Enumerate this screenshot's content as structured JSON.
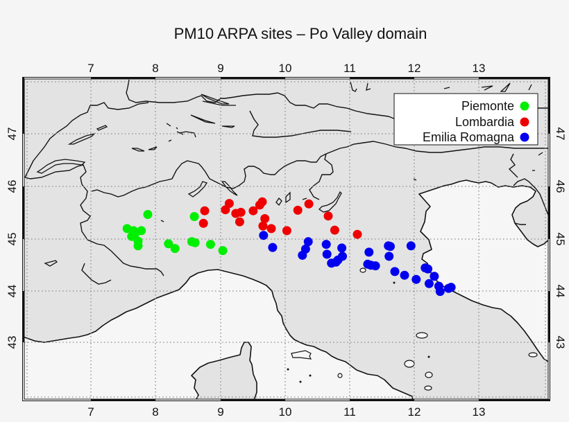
{
  "chart_data": {
    "type": "scatter",
    "title": "PM10 ARPA sites – Po Valley domain",
    "xlabel": "",
    "ylabel": "",
    "xlim": [
      5.95,
      14.1
    ],
    "ylim": [
      41.9,
      48.05
    ],
    "x_ticks": [
      "7",
      "8",
      "9",
      "10",
      "11",
      "12",
      "13"
    ],
    "y_ticks": [
      "43",
      "44",
      "45",
      "46",
      "47"
    ],
    "grid": true,
    "legend_position": "upper right",
    "colors": {
      "land": "#e3e3e3",
      "sea": "#f6f6f6",
      "coast": "#111111"
    },
    "series": [
      {
        "name": "Piemonte",
        "color": "#00ee00",
        "points": [
          [
            7.88,
            45.47
          ],
          [
            7.56,
            45.2
          ],
          [
            7.66,
            45.16
          ],
          [
            7.78,
            45.16
          ],
          [
            7.63,
            45.05
          ],
          [
            7.66,
            45.05
          ],
          [
            7.73,
            44.96
          ],
          [
            7.73,
            44.87
          ],
          [
            8.2,
            44.91
          ],
          [
            8.3,
            44.82
          ],
          [
            8.56,
            44.95
          ],
          [
            8.61,
            44.93
          ],
          [
            8.6,
            45.43
          ],
          [
            8.85,
            44.9
          ],
          [
            9.04,
            44.78
          ],
          [
            7.68,
            45.1
          ]
        ]
      },
      {
        "name": "Lombardia",
        "color": "#ee0000",
        "points": [
          [
            8.76,
            45.54
          ],
          [
            8.74,
            45.3
          ],
          [
            9.08,
            45.56
          ],
          [
            9.14,
            45.68
          ],
          [
            9.24,
            45.49
          ],
          [
            9.32,
            45.51
          ],
          [
            9.3,
            45.33
          ],
          [
            9.51,
            45.54
          ],
          [
            9.61,
            45.65
          ],
          [
            9.65,
            45.71
          ],
          [
            9.69,
            45.39
          ],
          [
            9.66,
            45.25
          ],
          [
            9.79,
            45.2
          ],
          [
            10.03,
            45.16
          ],
          [
            10.2,
            45.55
          ],
          [
            10.37,
            45.67
          ],
          [
            10.67,
            45.44
          ],
          [
            10.77,
            45.17
          ],
          [
            11.12,
            45.09
          ]
        ]
      },
      {
        "name": "Emilia Romagna",
        "color": "#0000ee",
        "points": [
          [
            9.67,
            45.07
          ],
          [
            9.81,
            44.84
          ],
          [
            10.36,
            44.95
          ],
          [
            10.32,
            44.81
          ],
          [
            10.27,
            44.69
          ],
          [
            10.64,
            44.9
          ],
          [
            10.65,
            44.71
          ],
          [
            10.88,
            44.83
          ],
          [
            10.89,
            44.67
          ],
          [
            10.72,
            44.54
          ],
          [
            10.79,
            44.56
          ],
          [
            10.82,
            44.6
          ],
          [
            11.3,
            44.75
          ],
          [
            11.28,
            44.52
          ],
          [
            11.33,
            44.5
          ],
          [
            11.4,
            44.49
          ],
          [
            11.6,
            44.87
          ],
          [
            11.63,
            44.86
          ],
          [
            11.61,
            44.67
          ],
          [
            11.7,
            44.38
          ],
          [
            11.85,
            44.31
          ],
          [
            12.03,
            44.23
          ],
          [
            11.95,
            44.87
          ],
          [
            12.17,
            44.45
          ],
          [
            12.21,
            44.43
          ],
          [
            12.31,
            44.29
          ],
          [
            12.23,
            44.15
          ],
          [
            12.38,
            44.1
          ],
          [
            12.4,
            44.0
          ],
          [
            12.53,
            44.06
          ],
          [
            12.57,
            44.08
          ]
        ]
      }
    ]
  },
  "legend": {
    "items": [
      {
        "label": "Piemonte",
        "color": "#00ee00"
      },
      {
        "label": "Lombardia",
        "color": "#ee0000"
      },
      {
        "label": "Emilia Romagna",
        "color": "#0000ee"
      }
    ]
  }
}
